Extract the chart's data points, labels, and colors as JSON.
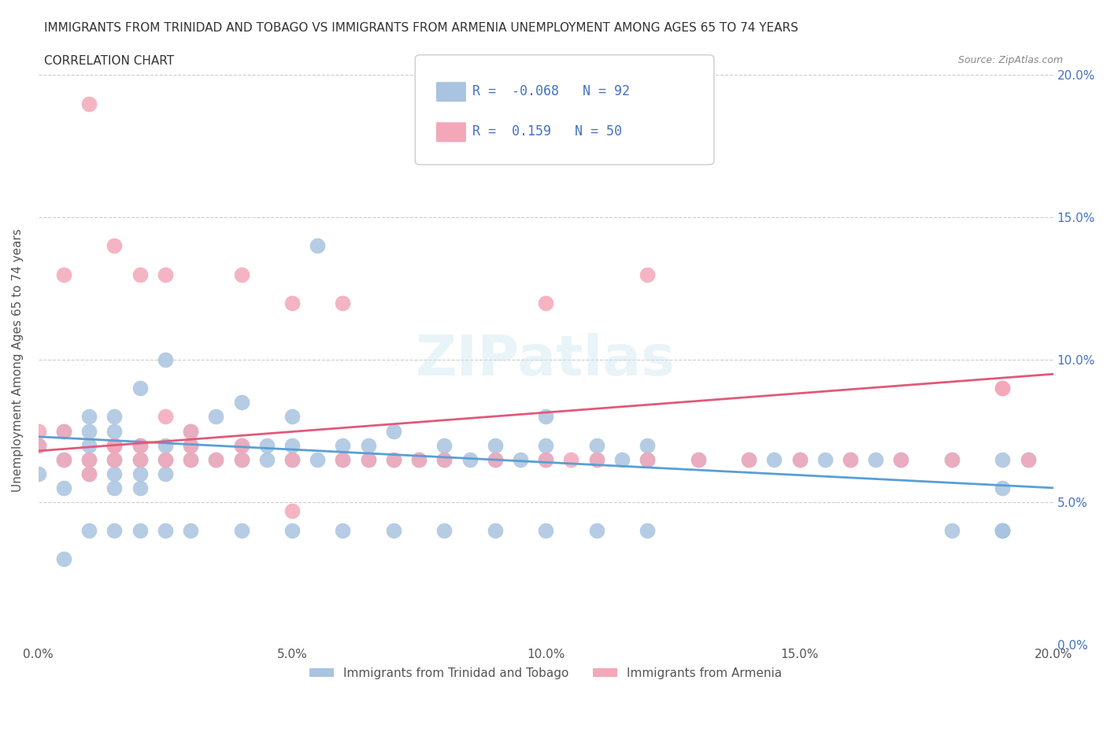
{
  "title_line1": "IMMIGRANTS FROM TRINIDAD AND TOBAGO VS IMMIGRANTS FROM ARMENIA UNEMPLOYMENT AMONG AGES 65 TO 74 YEARS",
  "title_line2": "CORRELATION CHART",
  "source": "Source: ZipAtlas.com",
  "xlabel_bottom": "",
  "ylabel": "Unemployment Among Ages 65 to 74 years",
  "legend_label1": "Immigrants from Trinidad and Tobago",
  "legend_label2": "Immigrants from Armenia",
  "R1": -0.068,
  "N1": 92,
  "R2": 0.159,
  "N2": 50,
  "xlim": [
    0.0,
    0.2
  ],
  "ylim": [
    0.0,
    0.2
  ],
  "xticks": [
    0.0,
    0.05,
    0.1,
    0.15,
    0.2
  ],
  "yticks": [
    0.0,
    0.05,
    0.1,
    0.15,
    0.2
  ],
  "color_blue": "#a8c4e0",
  "color_pink": "#f4a7b9",
  "color_blue_line": "#5a9fd4",
  "color_pink_line": "#e05a7a",
  "color_blue_text": "#4472c4",
  "background_color": "#ffffff",
  "watermark": "ZIPatlas",
  "blue_x": [
    0.0,
    0.0,
    0.005,
    0.005,
    0.01,
    0.01,
    0.01,
    0.01,
    0.01,
    0.015,
    0.015,
    0.015,
    0.015,
    0.015,
    0.015,
    0.02,
    0.02,
    0.02,
    0.02,
    0.02,
    0.025,
    0.025,
    0.025,
    0.025,
    0.03,
    0.03,
    0.03,
    0.035,
    0.035,
    0.04,
    0.04,
    0.04,
    0.045,
    0.045,
    0.05,
    0.05,
    0.05,
    0.055,
    0.055,
    0.06,
    0.06,
    0.065,
    0.065,
    0.07,
    0.07,
    0.075,
    0.08,
    0.08,
    0.085,
    0.09,
    0.09,
    0.095,
    0.1,
    0.1,
    0.1,
    0.11,
    0.11,
    0.115,
    0.12,
    0.12,
    0.13,
    0.14,
    0.145,
    0.15,
    0.155,
    0.16,
    0.165,
    0.17,
    0.18,
    0.19,
    0.19,
    0.19,
    0.195,
    0.005,
    0.005,
    0.01,
    0.015,
    0.02,
    0.025,
    0.03,
    0.04,
    0.05,
    0.06,
    0.07,
    0.08,
    0.09,
    0.1,
    0.11,
    0.12,
    0.18,
    0.19,
    0.19
  ],
  "blue_y": [
    0.06,
    0.07,
    0.065,
    0.075,
    0.06,
    0.065,
    0.07,
    0.075,
    0.08,
    0.055,
    0.06,
    0.065,
    0.07,
    0.075,
    0.08,
    0.055,
    0.06,
    0.065,
    0.07,
    0.09,
    0.06,
    0.065,
    0.07,
    0.1,
    0.065,
    0.07,
    0.075,
    0.065,
    0.08,
    0.065,
    0.07,
    0.085,
    0.065,
    0.07,
    0.065,
    0.07,
    0.08,
    0.065,
    0.14,
    0.065,
    0.07,
    0.065,
    0.07,
    0.065,
    0.075,
    0.065,
    0.065,
    0.07,
    0.065,
    0.065,
    0.07,
    0.065,
    0.065,
    0.07,
    0.08,
    0.065,
    0.07,
    0.065,
    0.065,
    0.07,
    0.065,
    0.065,
    0.065,
    0.065,
    0.065,
    0.065,
    0.065,
    0.065,
    0.065,
    0.04,
    0.055,
    0.065,
    0.065,
    0.03,
    0.055,
    0.04,
    0.04,
    0.04,
    0.04,
    0.04,
    0.04,
    0.04,
    0.04,
    0.04,
    0.04,
    0.04,
    0.04,
    0.04,
    0.04,
    0.04,
    0.04,
    0.04
  ],
  "pink_x": [
    0.0,
    0.005,
    0.005,
    0.01,
    0.01,
    0.015,
    0.015,
    0.015,
    0.02,
    0.02,
    0.025,
    0.025,
    0.025,
    0.03,
    0.03,
    0.035,
    0.04,
    0.04,
    0.05,
    0.05,
    0.06,
    0.065,
    0.07,
    0.075,
    0.08,
    0.09,
    0.1,
    0.1,
    0.105,
    0.11,
    0.12,
    0.13,
    0.14,
    0.15,
    0.16,
    0.17,
    0.18,
    0.19,
    0.195,
    0.0,
    0.005,
    0.01,
    0.015,
    0.02,
    0.03,
    0.04,
    0.05,
    0.06,
    0.12,
    0.19
  ],
  "pink_y": [
    0.07,
    0.065,
    0.13,
    0.06,
    0.19,
    0.065,
    0.07,
    0.14,
    0.065,
    0.13,
    0.065,
    0.08,
    0.13,
    0.065,
    0.075,
    0.065,
    0.065,
    0.13,
    0.065,
    0.12,
    0.12,
    0.065,
    0.065,
    0.065,
    0.065,
    0.065,
    0.065,
    0.12,
    0.065,
    0.065,
    0.065,
    0.065,
    0.065,
    0.065,
    0.065,
    0.065,
    0.065,
    0.09,
    0.065,
    0.075,
    0.075,
    0.065,
    0.07,
    0.07,
    0.07,
    0.07,
    0.047,
    0.065,
    0.13,
    0.09
  ]
}
